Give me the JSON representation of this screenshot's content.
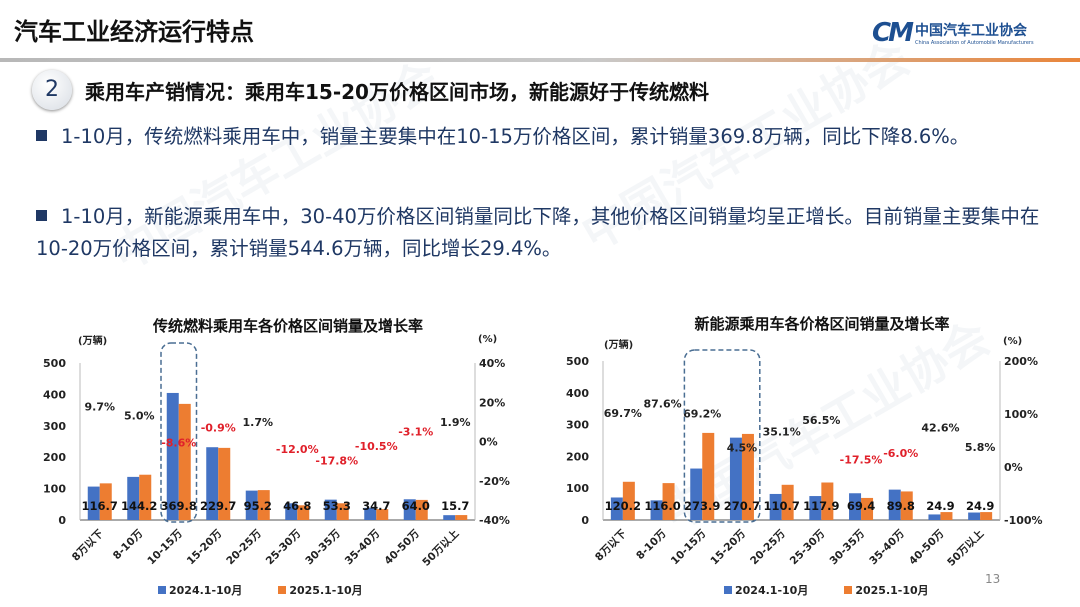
{
  "header": {
    "title": "汽车工业经济运行特点",
    "logo_cn": "中国汽车工业协会",
    "logo_en": "China Association of Automobile Manufacturers",
    "logo_mark": "CM"
  },
  "section": {
    "number": "2",
    "title": "乘用车产销情况：乘用车15-20万价格区间市场，新能源好于传统燃料"
  },
  "bullets": [
    "1-10月，传统燃料乘用车中，销量主要集中在10-15万价格区间，累计销量369.8万辆，同比下降8.6%。",
    "1-10月，新能源乘用车中，30-40万价格区间销量同比下降，其他价格区间销量均呈正增长。目前销量主要集中在10-20万价格区间，累计销量544.6万辆，同比增长29.4%。"
  ],
  "page_number": "13",
  "colors": {
    "series_2024": "#4472c4",
    "series_2025": "#ed7d31",
    "negative": "#e0202a",
    "highlight_box": "#4a6e93"
  },
  "chart_data": [
    {
      "type": "bar",
      "title": "传统燃料乘用车各价格区间销量及增长率",
      "ylabel": "(万辆)",
      "y2label": "(%)",
      "ylim": [
        0,
        500
      ],
      "yticks": [
        "0",
        "100",
        "200",
        "300",
        "400",
        "500"
      ],
      "y2lim": [
        -40,
        40
      ],
      "y2ticks": [
        "-40%",
        "-20%",
        "0%",
        "20%",
        "40%"
      ],
      "categories": [
        "8万以下",
        "8-10万",
        "10-15万",
        "15-20万",
        "20-25万",
        "25-30万",
        "30-35万",
        "35-40万",
        "40-50万",
        "50万以上"
      ],
      "series": [
        {
          "name": "2024.1-10月",
          "values": [
            106.4,
            137.3,
            404.6,
            231.8,
            93.6,
            53.2,
            64.8,
            38.8,
            66.0,
            15.4
          ]
        },
        {
          "name": "2025.1-10月",
          "values": [
            116.7,
            144.2,
            369.8,
            229.7,
            95.2,
            46.8,
            53.3,
            34.7,
            64.0,
            15.7
          ]
        }
      ],
      "value_labels": [
        "116.7",
        "144.2",
        "369.8",
        "229.7",
        "95.2",
        "46.8",
        "53.3",
        "34.7",
        "64.0",
        "15.7"
      ],
      "growth": [
        9.7,
        5.0,
        -8.6,
        -0.9,
        1.7,
        -12.0,
        -17.8,
        -10.5,
        -3.1,
        1.9
      ],
      "growth_labels": [
        "9.7%",
        "5.0%",
        "-8.6%",
        "-0.9%",
        "1.7%",
        "-12.0%",
        "-17.8%",
        "-10.5%",
        "-3.1%",
        "1.9%"
      ],
      "highlight": [
        "10-15万"
      ],
      "legend": "bottom"
    },
    {
      "type": "bar",
      "title": "新能源乘用车各价格区间销量及增长率",
      "ylabel": "(万辆)",
      "y2label": "(%)",
      "ylim": [
        0,
        500
      ],
      "yticks": [
        "0",
        "100",
        "200",
        "300",
        "400",
        "500"
      ],
      "y2lim": [
        -100,
        200
      ],
      "y2ticks": [
        "-100%",
        "0%",
        "100%",
        "200%"
      ],
      "categories": [
        "8万以下",
        "8-10万",
        "10-15万",
        "15-20万",
        "20-25万",
        "25-30万",
        "30-35万",
        "35-40万",
        "40-50万",
        "50万以上"
      ],
      "series": [
        {
          "name": "2024.1-10月",
          "values": [
            70.8,
            61.8,
            161.8,
            259.0,
            81.9,
            75.3,
            84.1,
            95.5,
            17.5,
            23.5
          ]
        },
        {
          "name": "2025.1-10月",
          "values": [
            120.2,
            116.0,
            273.9,
            270.7,
            110.7,
            117.9,
            69.4,
            89.8,
            24.9,
            24.9
          ]
        }
      ],
      "value_labels": [
        "120.2",
        "116.0",
        "273.9",
        "270.7",
        "110.7",
        "117.9",
        "69.4",
        "89.8",
        "24.9",
        "24.9"
      ],
      "growth": [
        69.7,
        87.6,
        69.2,
        4.5,
        35.1,
        56.5,
        -17.5,
        -6.0,
        42.6,
        5.8
      ],
      "growth_labels": [
        "69.7%",
        "87.6%",
        "69.2%",
        "4.5%",
        "35.1%",
        "56.5%",
        "-17.5%",
        "-6.0%",
        "42.6%",
        "5.8%"
      ],
      "highlight": [
        "10-15万",
        "15-20万"
      ],
      "legend": "bottom"
    }
  ]
}
